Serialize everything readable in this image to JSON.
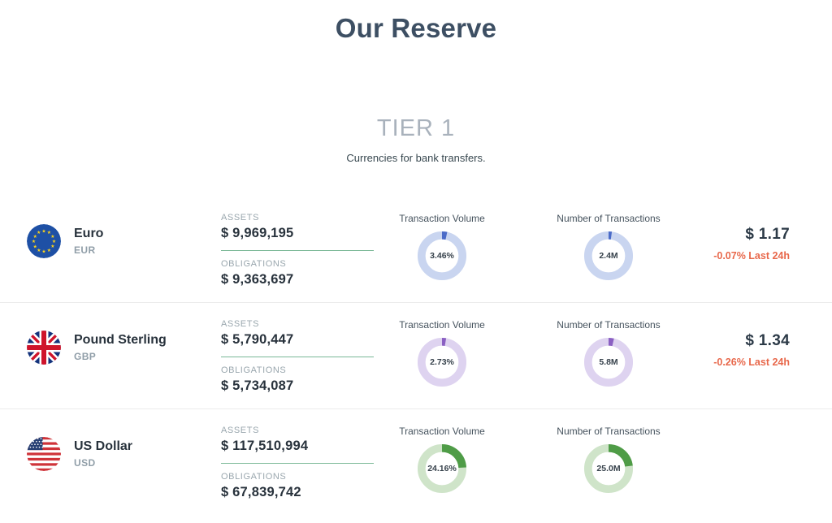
{
  "page": {
    "title": "Our Reserve"
  },
  "tier": {
    "title": "TIER 1",
    "subtitle": "Currencies for bank transfers."
  },
  "shared_labels": {
    "assets": "ASSETS",
    "obligations": "OBLIGATIONS",
    "transaction_volume": "Transaction Volume",
    "number_of_transactions": "Number of Transactions"
  },
  "rows": [
    {
      "name": "Euro",
      "code": "EUR",
      "flag": "eu",
      "assets": "$ 9,969,195",
      "obligations": "$ 9,363,697",
      "colors": {
        "ring": "#c9d5f0",
        "segment": "#4a6bc8"
      },
      "tv": {
        "display": "3.46%",
        "percent": 3.46
      },
      "nt": {
        "display": "2.4M",
        "percent": 2.2
      },
      "rate": {
        "value": "$ 1.17",
        "change": "-0.07% Last 24h"
      }
    },
    {
      "name": "Pound Sterling",
      "code": "GBP",
      "flag": "uk",
      "assets": "$ 5,790,447",
      "obligations": "$ 5,734,087",
      "colors": {
        "ring": "#ded3f0",
        "segment": "#8a5fc2"
      },
      "tv": {
        "display": "2.73%",
        "percent": 2.73
      },
      "nt": {
        "display": "5.8M",
        "percent": 3.6
      },
      "rate": {
        "value": "$ 1.34",
        "change": "-0.26% Last 24h"
      }
    },
    {
      "name": "US Dollar",
      "code": "USD",
      "flag": "us",
      "assets": "$ 117,510,994",
      "obligations": "$ 67,839,742",
      "colors": {
        "ring": "#cfe4c9",
        "segment": "#4f9c47"
      },
      "tv": {
        "display": "24.16%",
        "percent": 24.16
      },
      "nt": {
        "display": "25.0M",
        "percent": 23.0
      },
      "rate": null
    }
  ]
}
